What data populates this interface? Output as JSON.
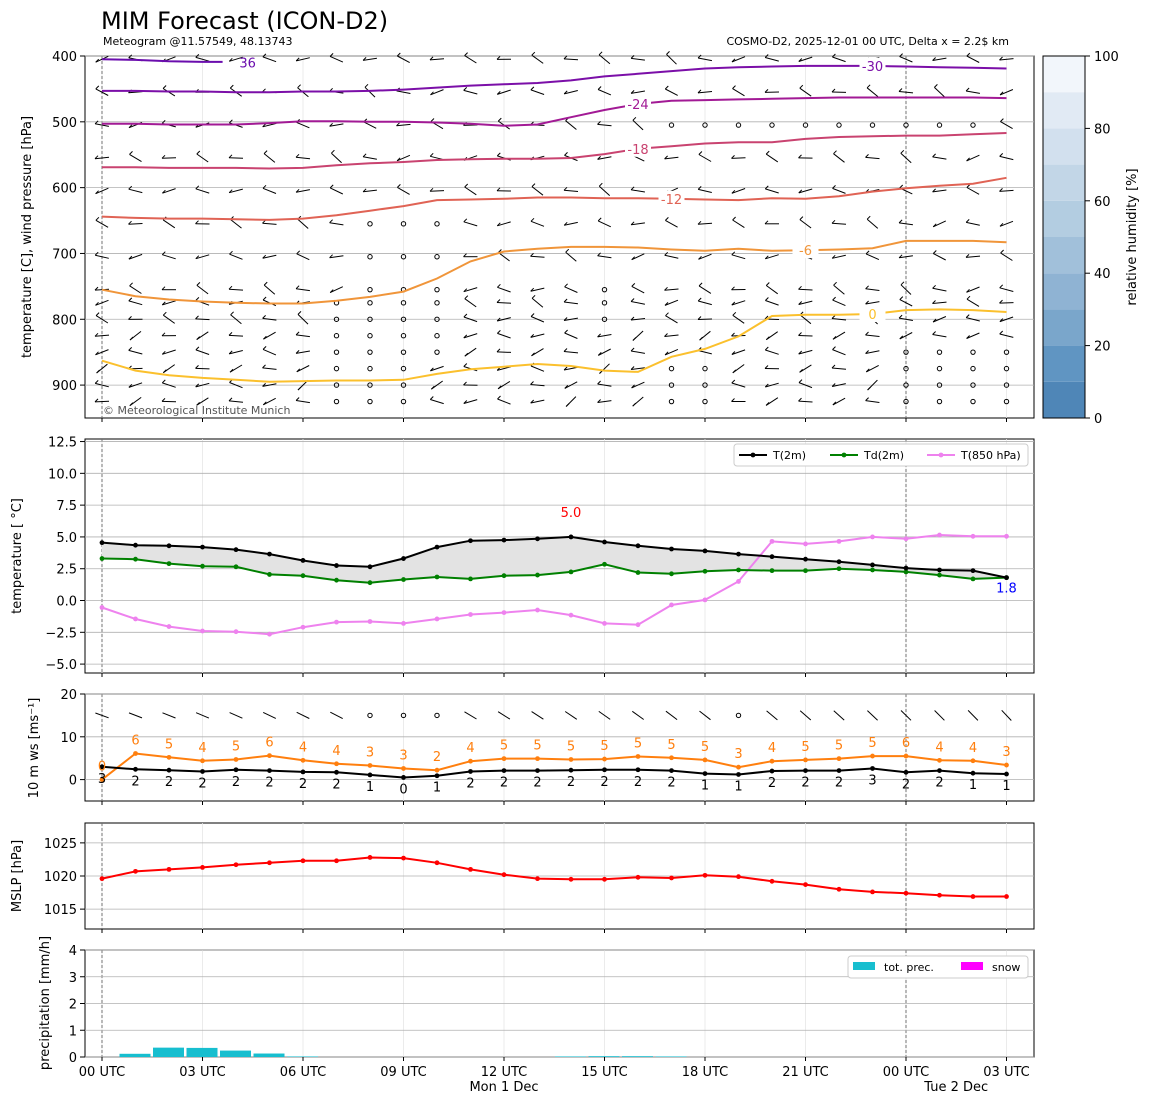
{
  "header": {
    "title": "MIM Forecast (ICON-D2)",
    "subtitle_left": "Meteogram @11.57549, 48.13743",
    "subtitle_right": "COSMO-D2, 2025-12-01 00 UTC, Delta x = 2.2$ km",
    "copyright": "© Meteorological Institute Munich"
  },
  "time_axis": {
    "ticks": [
      0,
      3,
      6,
      9,
      12,
      15,
      18,
      21,
      24,
      27
    ],
    "tick_labels": [
      "00 UTC",
      "03 UTC",
      "06 UTC",
      "09 UTC",
      "12 UTC",
      "15 UTC",
      "18 UTC",
      "21 UTC",
      "00 UTC",
      "03 UTC"
    ],
    "day_labels": [
      {
        "hour": 12,
        "text": "Mon 1 Dec"
      },
      {
        "hour": 25.5,
        "text": "Tue 2 Dec"
      }
    ],
    "day_boundaries": [
      0,
      24
    ]
  },
  "colors": {
    "t2m": "#000000",
    "td2m": "#008000",
    "t850": "#ee82ee",
    "wind_speed": "#ff7f0e",
    "mslp": "#ff0000",
    "precip": "#17becf",
    "snow": "#ff00ff",
    "max_label": "#ff0000",
    "last_label": "#0000ff"
  },
  "chart_data": [
    {
      "type": "line",
      "id": "upper-air",
      "title": "MIM Forecast (ICON-D2)",
      "ylabel": "temperature [C], wind pressure [hPa]",
      "ylim": [
        950,
        400
      ],
      "yticks": [
        400,
        500,
        600,
        700,
        800,
        900
      ],
      "colorbar": {
        "label": "relative humidity [%]",
        "range": [
          0,
          100
        ],
        "ticks": [
          0,
          20,
          40,
          60,
          80,
          100
        ],
        "colors": [
          "#4f86b7",
          "#6095c2",
          "#7aa6cb",
          "#8fb3d3",
          "#a1c0da",
          "#b3cde1",
          "#c2d6e7",
          "#d2e0ee",
          "#e1eaf4",
          "#f2f6fb"
        ]
      },
      "isotherms": [
        {
          "label": "36",
          "color": "#6a0dad",
          "y": [
            405,
            406,
            408,
            409,
            410,
            410,
            411,
            412,
            412,
            412,
            411,
            410,
            409,
            408,
            407,
            406,
            405,
            404,
            403,
            403,
            403,
            404,
            405,
            405,
            406,
            407,
            408,
            409
          ],
          "hidden_after": 3.6
        },
        {
          "label": "-30",
          "color": "#7b0fa8",
          "y": [
            453,
            453,
            454,
            454,
            455,
            455,
            454,
            454,
            453,
            451,
            448,
            445,
            443,
            441,
            437,
            431,
            427,
            423,
            419,
            417,
            416,
            415,
            415,
            415,
            416,
            417,
            418,
            419
          ],
          "label_at": 23
        },
        {
          "label": "-24",
          "color": "#a21a95",
          "y": [
            503,
            503,
            504,
            504,
            504,
            502,
            499,
            499,
            500,
            500,
            501,
            503,
            506,
            504,
            493,
            482,
            473,
            468,
            467,
            466,
            465,
            464,
            463,
            463,
            463,
            463,
            463,
            464
          ],
          "label_at": 16
        },
        {
          "label": "-18",
          "color": "#c94370",
          "y": [
            569,
            569,
            570,
            570,
            570,
            571,
            570,
            566,
            563,
            561,
            558,
            557,
            556,
            556,
            555,
            549,
            541,
            537,
            533,
            531,
            531,
            526,
            523,
            522,
            521,
            521,
            519,
            517
          ],
          "label_at": 16
        },
        {
          "label": "-12",
          "color": "#e06355",
          "y": [
            644,
            646,
            647,
            647,
            648,
            649,
            647,
            642,
            635,
            628,
            619,
            618,
            617,
            615,
            615,
            616,
            616,
            617,
            618,
            619,
            616,
            617,
            613,
            606,
            601,
            597,
            594,
            585
          ],
          "label_at": 17
        },
        {
          "label": "-6",
          "color": "#f0953a",
          "y": [
            755,
            765,
            770,
            773,
            775,
            776,
            776,
            772,
            766,
            758,
            738,
            712,
            697,
            693,
            690,
            690,
            691,
            694,
            696,
            693,
            696,
            695,
            694,
            692,
            681,
            681,
            681,
            683
          ],
          "label_at": 21
        },
        {
          "label": "0",
          "color": "#fbc02d",
          "y": [
            863,
            878,
            885,
            889,
            892,
            895,
            894,
            893,
            893,
            892,
            883,
            876,
            872,
            868,
            871,
            878,
            880,
            857,
            845,
            826,
            795,
            793,
            793,
            792,
            786,
            785,
            786,
            789
          ],
          "label_at": 23
        }
      ],
      "calm_marker": "o"
    },
    {
      "type": "line",
      "id": "temperature",
      "ylabel": "temperature [ °C]",
      "ylim": [
        -5.7,
        12.7
      ],
      "yticks": [
        -5.0,
        -2.5,
        0.0,
        2.5,
        5.0,
        7.5,
        10.0,
        12.5
      ],
      "ytick_labels": [
        "−5.0",
        "−2.5",
        "0.0",
        "2.5",
        "5.0",
        "7.5",
        "10.0",
        "12.5"
      ],
      "x": [
        0,
        1,
        2,
        3,
        4,
        5,
        6,
        7,
        8,
        9,
        10,
        11,
        12,
        13,
        14,
        15,
        16,
        17,
        18,
        19,
        20,
        21,
        22,
        23,
        24,
        25,
        26,
        27
      ],
      "series": [
        {
          "name": "T(2m)",
          "values": [
            4.55,
            4.35,
            4.3,
            4.2,
            4.0,
            3.65,
            3.15,
            2.75,
            2.65,
            3.3,
            4.2,
            4.7,
            4.75,
            4.85,
            5.0,
            4.6,
            4.3,
            4.05,
            3.9,
            3.65,
            3.45,
            3.25,
            3.05,
            2.8,
            2.55,
            2.4,
            2.35,
            1.8
          ]
        },
        {
          "name": "Td(2m)",
          "values": [
            3.3,
            3.25,
            2.9,
            2.7,
            2.65,
            2.05,
            1.95,
            1.6,
            1.4,
            1.65,
            1.85,
            1.7,
            1.95,
            2.0,
            2.25,
            2.85,
            2.2,
            2.1,
            2.3,
            2.4,
            2.35,
            2.35,
            2.5,
            2.4,
            2.25,
            2.0,
            1.7,
            1.8
          ]
        },
        {
          "name": "T(850 hPa)",
          "values": [
            -0.55,
            -1.45,
            -2.05,
            -2.4,
            -2.45,
            -2.65,
            -2.1,
            -1.7,
            -1.65,
            -1.8,
            -1.45,
            -1.1,
            -0.95,
            -0.75,
            -1.15,
            -1.8,
            -1.9,
            -0.35,
            0.05,
            1.5,
            4.65,
            4.45,
            4.65,
            5.0,
            4.85,
            5.15,
            5.05,
            5.05
          ]
        }
      ],
      "annotations": [
        {
          "text": "5.0",
          "hour": 14,
          "value": 5.0,
          "kind": "max"
        },
        {
          "text": "1.8",
          "hour": 27,
          "value": 1.8,
          "kind": "last"
        }
      ],
      "legend": {
        "position": "top-right",
        "entries": [
          "T(2m)",
          "Td(2m)",
          "T(850 hPa)"
        ]
      }
    },
    {
      "type": "line",
      "id": "wind10m",
      "ylabel": "10 m ws [ms⁻¹]",
      "ylim": [
        -5,
        20
      ],
      "yticks": [
        0,
        10,
        20
      ],
      "x": [
        0,
        1,
        2,
        3,
        4,
        5,
        6,
        7,
        8,
        9,
        10,
        11,
        12,
        13,
        14,
        15,
        16,
        17,
        18,
        19,
        20,
        21,
        22,
        23,
        24,
        25,
        26,
        27
      ],
      "series": [
        {
          "name": "mean wind",
          "values": [
            3.0,
            2.4,
            2.2,
            1.9,
            2.3,
            2.1,
            1.8,
            1.7,
            1.1,
            0.5,
            0.9,
            1.9,
            2.1,
            2.1,
            2.2,
            2.3,
            2.3,
            2.1,
            1.4,
            1.2,
            2.0,
            2.1,
            2.1,
            2.6,
            1.7,
            2.1,
            1.5,
            1.3
          ],
          "labels": [
            "3",
            "2",
            "2",
            "2",
            "2",
            "2",
            "2",
            "2",
            "1",
            "0",
            "1",
            "2",
            "2",
            "2",
            "2",
            "2",
            "2",
            "2",
            "1",
            "1",
            "2",
            "2",
            "2",
            "3",
            "2",
            "2",
            "1",
            "1"
          ]
        },
        {
          "name": "gusts",
          "values": [
            0.0,
            6.1,
            5.2,
            4.4,
            4.7,
            5.6,
            4.5,
            3.7,
            3.3,
            2.6,
            2.2,
            4.3,
            4.9,
            4.9,
            4.7,
            4.8,
            5.4,
            5.1,
            4.6,
            2.9,
            4.3,
            4.6,
            4.9,
            5.5,
            5.5,
            4.5,
            4.4,
            3.4
          ],
          "labels": [
            "0",
            "6",
            "5",
            "4",
            "5",
            "6",
            "4",
            "4",
            "3",
            "3",
            "2",
            "4",
            "5",
            "5",
            "5",
            "5",
            "5",
            "5",
            "5",
            "3",
            "4",
            "5",
            "5",
            "5",
            "6",
            "4",
            "4",
            "3"
          ]
        }
      ]
    },
    {
      "type": "line",
      "id": "mslp",
      "ylabel": "MSLP [hPa]",
      "ylim": [
        1012,
        1028
      ],
      "yticks": [
        1015,
        1020,
        1025
      ],
      "x": [
        0,
        1,
        2,
        3,
        4,
        5,
        6,
        7,
        8,
        9,
        10,
        11,
        12,
        13,
        14,
        15,
        16,
        17,
        18,
        19,
        20,
        21,
        22,
        23,
        24,
        25,
        26,
        27
      ],
      "series": [
        {
          "name": "MSLP",
          "values": [
            1019.6,
            1020.7,
            1021.0,
            1021.3,
            1021.7,
            1022.0,
            1022.3,
            1022.3,
            1022.8,
            1022.7,
            1022.0,
            1021.0,
            1020.2,
            1019.6,
            1019.5,
            1019.5,
            1019.8,
            1019.7,
            1020.1,
            1019.9,
            1019.2,
            1018.7,
            1018.0,
            1017.6,
            1017.4,
            1017.1,
            1016.9,
            1016.9
          ]
        }
      ]
    },
    {
      "type": "bar",
      "id": "precipitation",
      "ylabel": "precipitation [mm/h]",
      "ylim": [
        0,
        4
      ],
      "yticks": [
        0,
        1,
        2,
        3,
        4
      ],
      "x": [
        1,
        2,
        3,
        4,
        5,
        6,
        14,
        15,
        16,
        17
      ],
      "series": [
        {
          "name": "tot. prec.",
          "values": [
            0.12,
            0.35,
            0.34,
            0.24,
            0.13,
            0.02,
            0.02,
            0.03,
            0.03,
            0.02
          ]
        },
        {
          "name": "snow",
          "values": [
            0,
            0,
            0,
            0,
            0,
            0,
            0,
            0,
            0,
            0
          ]
        }
      ],
      "legend": {
        "position": "top-right",
        "entries": [
          "tot. prec.",
          "snow"
        ]
      }
    }
  ]
}
